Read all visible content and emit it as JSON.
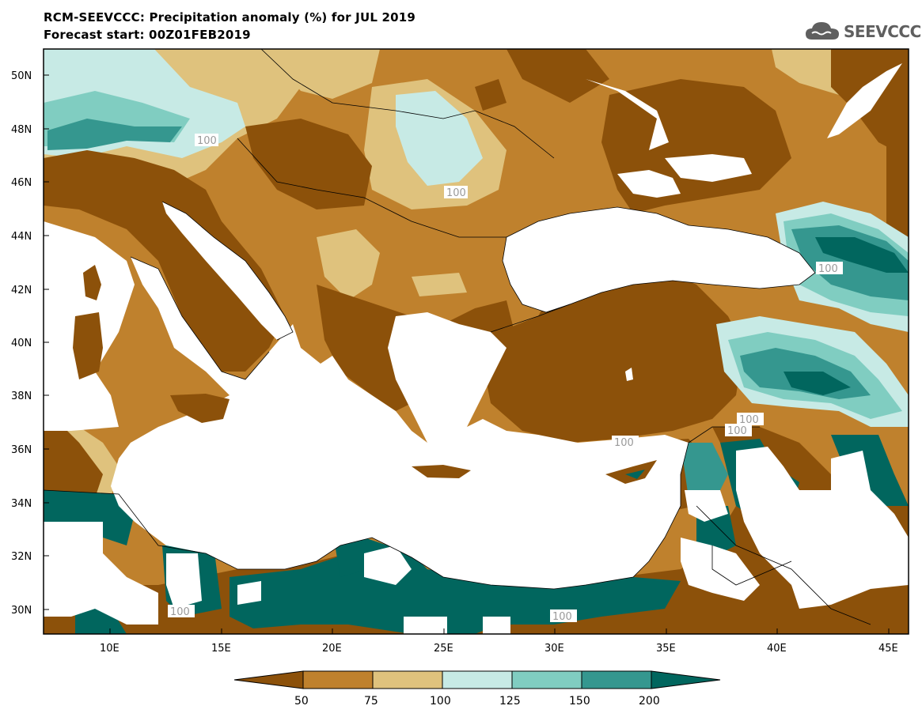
{
  "header": {
    "title_line1": "RCM-SEEVCCC: Precipitation anomaly (%) for JUL 2019",
    "title_line2": "Forecast start: 00Z01FEB2019",
    "logo_text": "SEEVCCC"
  },
  "map": {
    "lat_ticks": [
      "50N",
      "48N",
      "46N",
      "44N",
      "42N",
      "40N",
      "38N",
      "36N",
      "34N",
      "32N",
      "30N"
    ],
    "lon_ticks": [
      "10E",
      "15E",
      "20E",
      "25E",
      "30E",
      "35E",
      "40E",
      "45E"
    ],
    "contour_labels": [
      "100",
      "100",
      "100",
      "100",
      "100",
      "100",
      "100",
      "100"
    ]
  },
  "legend": {
    "levels": [
      "50",
      "75",
      "100",
      "125",
      "150",
      "200"
    ],
    "colors": [
      "#8c510a",
      "#bf812d",
      "#dfc27d",
      "#c7eae5",
      "#80cdc1",
      "#35978f",
      "#01665e"
    ]
  }
}
